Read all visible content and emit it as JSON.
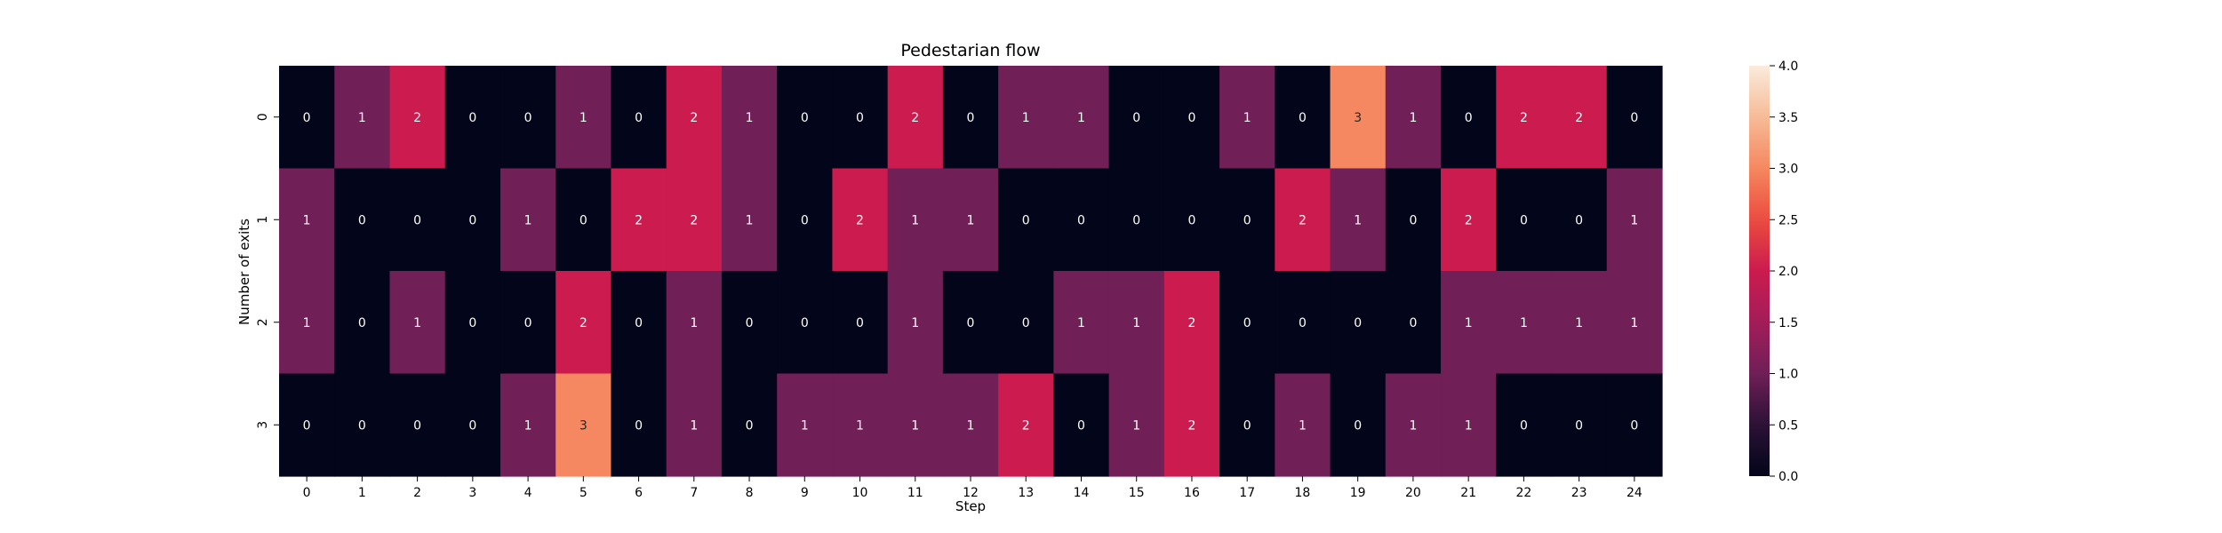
{
  "chart_data": {
    "type": "heatmap",
    "title": "Pedestarian flow",
    "xlabel": "Step",
    "ylabel": "Number of exits",
    "x_categories": [
      "0",
      "1",
      "2",
      "3",
      "4",
      "5",
      "6",
      "7",
      "8",
      "9",
      "10",
      "11",
      "12",
      "13",
      "14",
      "15",
      "16",
      "17",
      "18",
      "19",
      "20",
      "21",
      "22",
      "23",
      "24"
    ],
    "y_categories": [
      "0",
      "1",
      "2",
      "3"
    ],
    "values": [
      [
        0,
        1,
        2,
        0,
        0,
        1,
        0,
        2,
        1,
        0,
        0,
        2,
        0,
        1,
        1,
        0,
        0,
        1,
        0,
        3,
        1,
        0,
        2,
        2,
        0
      ],
      [
        1,
        0,
        0,
        0,
        1,
        0,
        2,
        2,
        1,
        0,
        2,
        1,
        1,
        0,
        0,
        0,
        0,
        0,
        2,
        1,
        0,
        2,
        0,
        0,
        1
      ],
      [
        1,
        0,
        1,
        0,
        0,
        2,
        0,
        1,
        0,
        0,
        0,
        1,
        0,
        0,
        1,
        1,
        2,
        0,
        0,
        0,
        0,
        1,
        1,
        1,
        1
      ],
      [
        0,
        0,
        0,
        0,
        1,
        3,
        0,
        1,
        0,
        1,
        1,
        1,
        1,
        2,
        0,
        1,
        2,
        0,
        1,
        0,
        1,
        1,
        0,
        0,
        0
      ]
    ],
    "colorbar": {
      "vmin": 0,
      "vmax": 4,
      "ticks": [
        "0.0",
        "0.5",
        "1.0",
        "1.5",
        "2.0",
        "2.5",
        "3.0",
        "3.5",
        "4.0"
      ]
    },
    "colormap": "rocket",
    "colors": {
      "0": "#03051a",
      "1": "#701f57",
      "2": "#cb1b4f",
      "3": "#f58860",
      "4": "#faebdd"
    }
  }
}
